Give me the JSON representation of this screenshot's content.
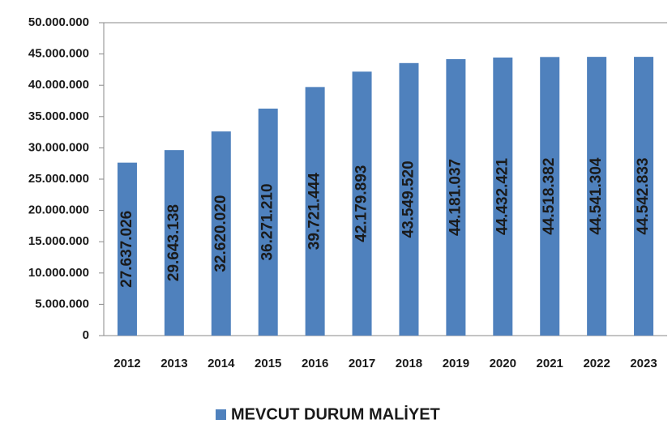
{
  "chart_data": {
    "type": "bar",
    "categories": [
      "2012",
      "2013",
      "2014",
      "2015",
      "2016",
      "2017",
      "2018",
      "2019",
      "2020",
      "2021",
      "2022",
      "2023"
    ],
    "series": [
      {
        "name": "MEVCUT DURUM MALİYET",
        "color": "#4f81bd",
        "values": [
          27637026,
          29643138,
          32620020,
          36271210,
          39721444,
          42179893,
          43549520,
          44181037,
          44432421,
          44518382,
          44541304,
          44542833
        ],
        "value_labels": [
          "27.637.026",
          "29.643.138",
          "32.620.020",
          "36.271.210",
          "39.721.444",
          "42.179.893",
          "43.549.520",
          "44.181.037",
          "44.432.421",
          "44.518.382",
          "44.541.304",
          "44.542.833"
        ]
      }
    ],
    "ylim": [
      0,
      50000000
    ],
    "yticks": [
      0,
      {
        "value": 5000000,
        "label": "5.000.000"
      },
      {
        "value": 10000000,
        "label": "10.000.000"
      },
      {
        "value": 15000000,
        "label": "15.000.000"
      },
      {
        "value": 20000000,
        "label": "20.000.000"
      },
      {
        "value": 25000000,
        "label": "25.000.000"
      },
      {
        "value": 30000000,
        "label": "30.000.000"
      },
      {
        "value": 35000000,
        "label": "35.000.000"
      },
      {
        "value": 40000000,
        "label": "40.000.000"
      },
      {
        "value": 45000000,
        "label": "45.000.000"
      },
      {
        "value": 50000000,
        "label": "50.000.000"
      }
    ],
    "grid": false,
    "legend": "bottom"
  }
}
